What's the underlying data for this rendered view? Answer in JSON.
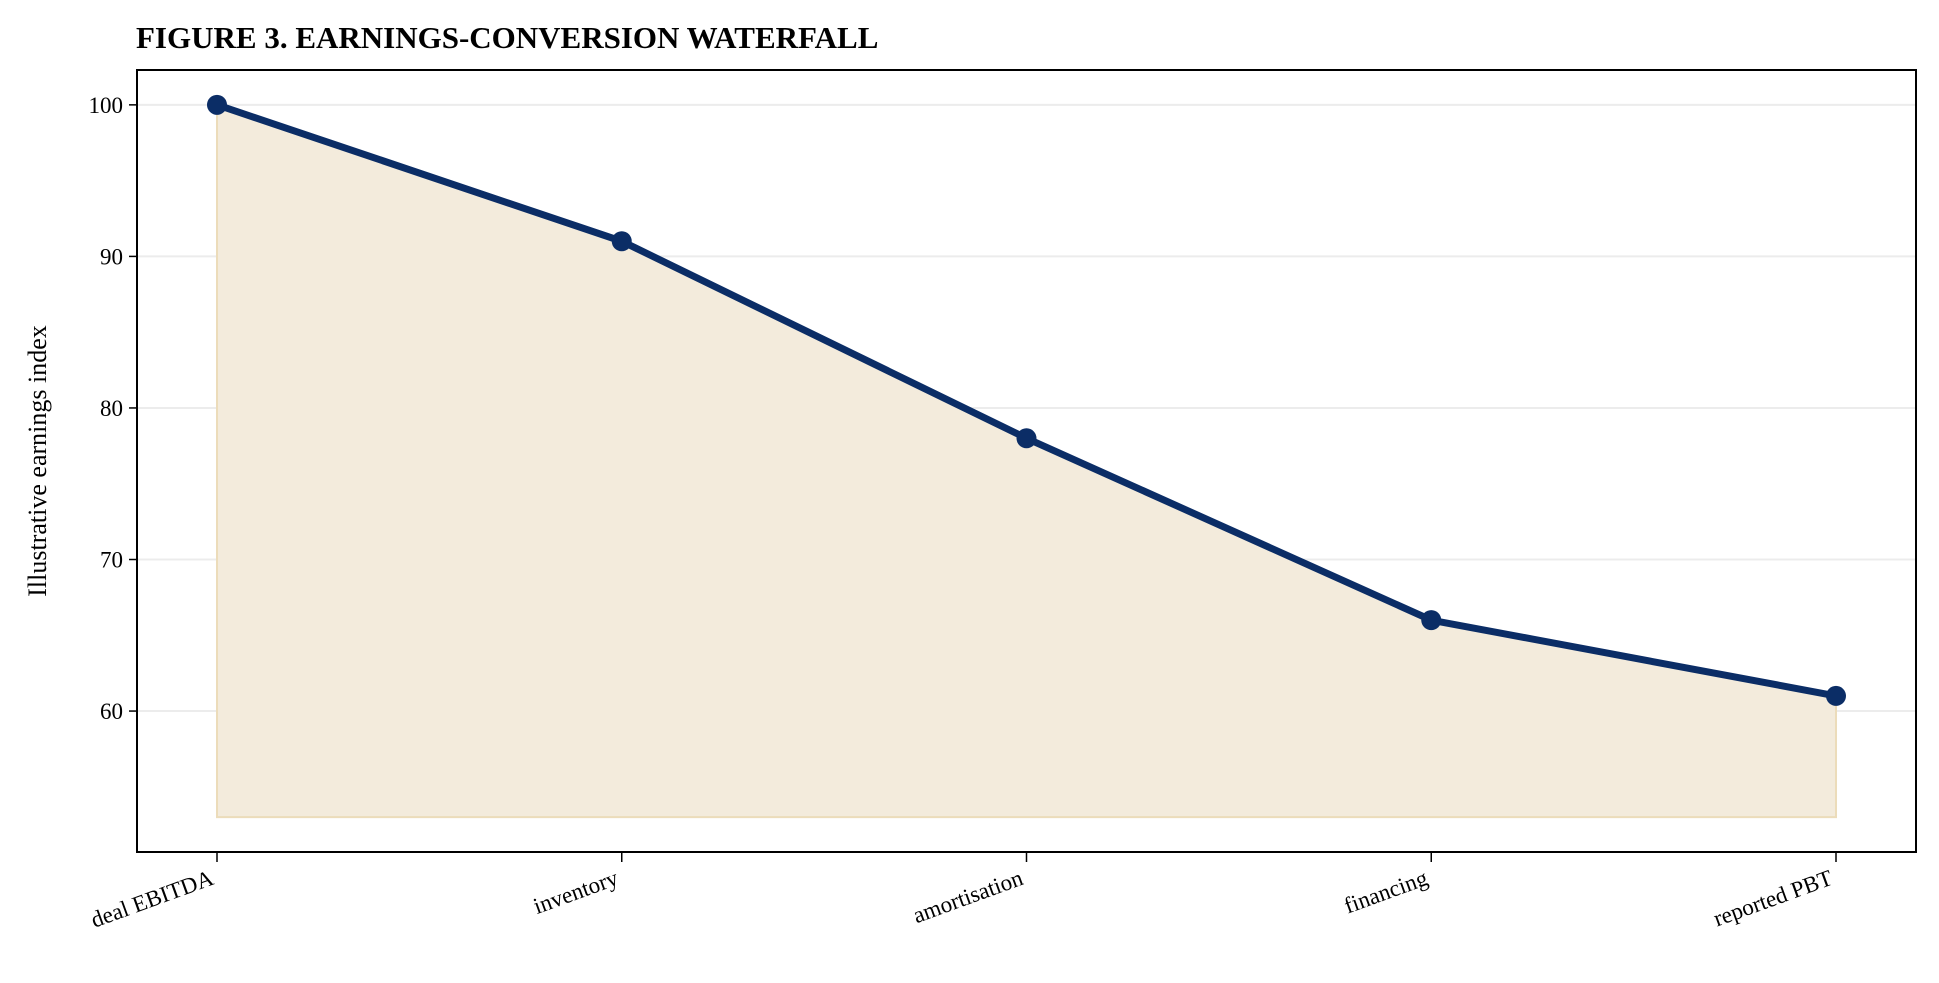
{
  "chart_data": {
    "type": "line",
    "title": "FIGURE 3. EARNINGS-CONVERSION WATERFALL",
    "xlabel": "",
    "ylabel": "Illustrative earnings index",
    "categories": [
      "deal EBITDA",
      "inventory",
      "amortisation",
      "financing",
      "reported PBT"
    ],
    "series": [
      {
        "values": [
          100,
          91,
          78,
          66,
          61
        ]
      }
    ],
    "ylim": [
      50.7,
      102.3
    ],
    "yticks": [
      60,
      70,
      80,
      90,
      100
    ],
    "fill_baseline": 53,
    "grid": "horizontal",
    "colors": {
      "line": "#0b2d66",
      "fill": "#f3ebdc",
      "fill_edge": "#ecdcba",
      "grid": "#ececec"
    }
  }
}
